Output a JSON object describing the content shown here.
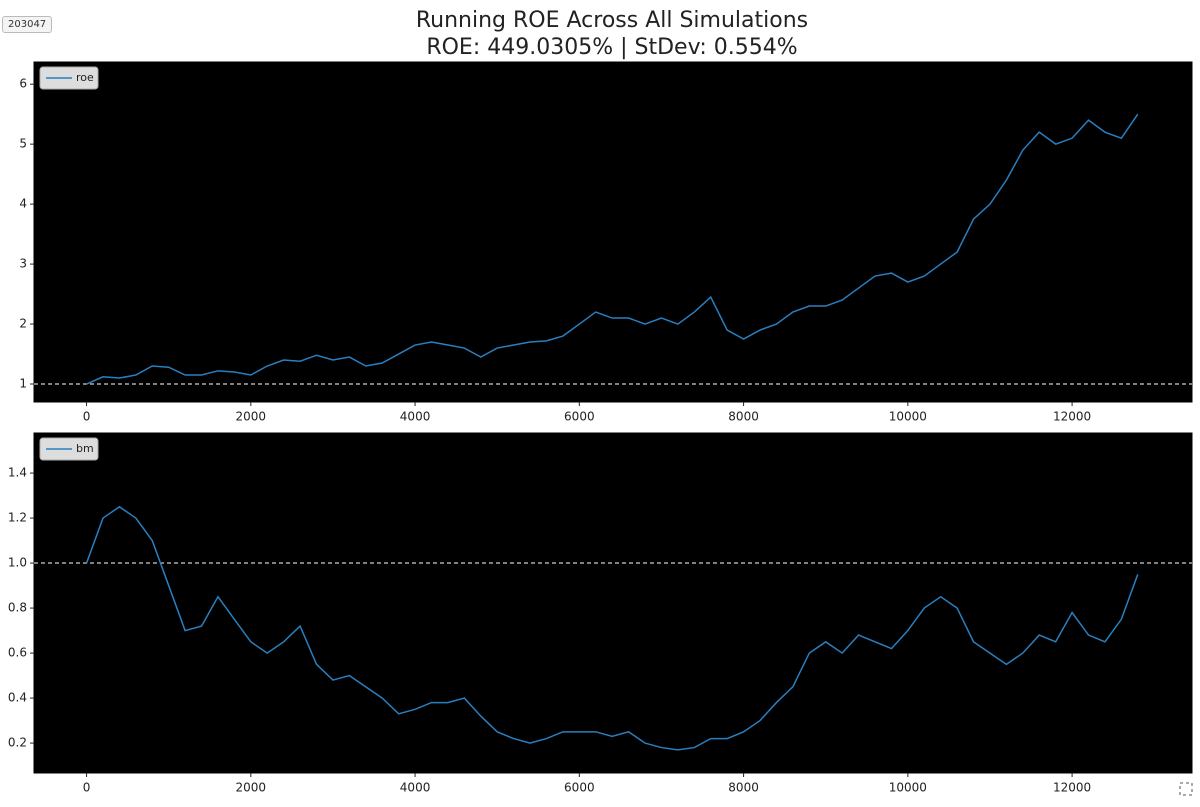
{
  "badge": "203047",
  "chart_data": [
    {
      "type": "line",
      "title": "Running ROE Across All Simulations",
      "subtitle": "ROE: 449.0305% | StDev: 0.554%",
      "x": [
        0,
        200,
        400,
        600,
        800,
        1000,
        1200,
        1400,
        1600,
        1800,
        2000,
        2200,
        2400,
        2600,
        2800,
        3000,
        3200,
        3400,
        3600,
        3800,
        4000,
        4200,
        4400,
        4600,
        4800,
        5000,
        5200,
        5400,
        5600,
        5800,
        6000,
        6200,
        6400,
        6600,
        6800,
        7000,
        7200,
        7400,
        7600,
        7800,
        8000,
        8200,
        8400,
        8600,
        8800,
        9000,
        9200,
        9400,
        9600,
        9800,
        10000,
        10200,
        10400,
        10600,
        10800,
        11000,
        11200,
        11400,
        11600,
        11800,
        12000,
        12200,
        12400,
        12600,
        12800
      ],
      "series": [
        {
          "name": "roe",
          "color": "#2a7fc0",
          "values": [
            1.0,
            1.12,
            1.1,
            1.15,
            1.3,
            1.28,
            1.15,
            1.15,
            1.22,
            1.2,
            1.15,
            1.3,
            1.4,
            1.38,
            1.48,
            1.4,
            1.45,
            1.3,
            1.35,
            1.5,
            1.65,
            1.7,
            1.65,
            1.6,
            1.45,
            1.6,
            1.65,
            1.7,
            1.72,
            1.8,
            2.0,
            2.2,
            2.1,
            2.1,
            2.0,
            2.1,
            2.0,
            2.2,
            2.45,
            1.9,
            1.75,
            1.9,
            2.0,
            2.2,
            2.3,
            2.3,
            2.4,
            2.6,
            2.8,
            2.85,
            2.7,
            2.8,
            3.0,
            3.2,
            3.75,
            4.0,
            4.4,
            4.9,
            5.2,
            5.0,
            5.1,
            5.4,
            5.2,
            5.1,
            5.5
          ]
        }
      ],
      "xlim": [
        -640,
        13460
      ],
      "ylim": [
        0.7,
        6.37
      ],
      "xticks": [
        0,
        2000,
        4000,
        6000,
        8000,
        10000,
        12000
      ],
      "yticks": [
        1,
        2,
        3,
        4,
        5,
        6
      ],
      "hline": 1,
      "legend": "upper left"
    },
    {
      "type": "line",
      "x": [
        0,
        200,
        400,
        600,
        800,
        1000,
        1200,
        1400,
        1600,
        1800,
        2000,
        2200,
        2400,
        2600,
        2800,
        3000,
        3200,
        3400,
        3600,
        3800,
        4000,
        4200,
        4400,
        4600,
        4800,
        5000,
        5200,
        5400,
        5600,
        5800,
        6000,
        6200,
        6400,
        6600,
        6800,
        7000,
        7200,
        7400,
        7600,
        7800,
        8000,
        8200,
        8400,
        8600,
        8800,
        9000,
        9200,
        9400,
        9600,
        9800,
        10000,
        10200,
        10400,
        10600,
        10800,
        11000,
        11200,
        11400,
        11600,
        11800,
        12000,
        12200,
        12400,
        12600,
        12800
      ],
      "series": [
        {
          "name": "bm",
          "color": "#2a7fc0",
          "values": [
            1.0,
            1.2,
            1.25,
            1.2,
            1.1,
            0.9,
            0.7,
            0.72,
            0.85,
            0.75,
            0.65,
            0.6,
            0.65,
            0.72,
            0.55,
            0.48,
            0.5,
            0.45,
            0.4,
            0.33,
            0.35,
            0.38,
            0.38,
            0.4,
            0.32,
            0.25,
            0.22,
            0.2,
            0.22,
            0.25,
            0.25,
            0.25,
            0.23,
            0.25,
            0.2,
            0.18,
            0.17,
            0.18,
            0.22,
            0.22,
            0.25,
            0.3,
            0.38,
            0.45,
            0.6,
            0.65,
            0.6,
            0.68,
            0.65,
            0.62,
            0.7,
            0.8,
            0.85,
            0.8,
            0.65,
            0.6,
            0.55,
            0.6,
            0.68,
            0.65,
            0.78,
            0.68,
            0.65,
            0.75,
            0.95
          ]
        }
      ],
      "xlim": [
        -640,
        13460
      ],
      "ylim": [
        0.067,
        1.578
      ],
      "xticks": [
        0,
        2000,
        4000,
        6000,
        8000,
        10000,
        12000
      ],
      "yticks": [
        0.2,
        0.4,
        0.6,
        0.8,
        {
          "value": 1.0,
          "label": "1.0"
        },
        1.2,
        1.4
      ],
      "hline": 1,
      "legend": "upper left"
    }
  ]
}
